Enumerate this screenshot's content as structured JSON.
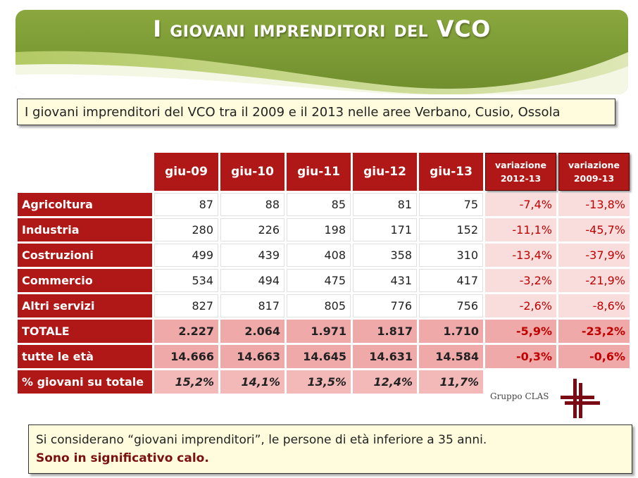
{
  "title": "I giovani imprenditori del VCO",
  "subtitle": "I giovani imprenditori del VCO tra il 2009 e il 2013 nelle aree Verbano, Cusio, Ossola",
  "colors": {
    "header_red": "#b01818",
    "variation_red": "#c00000",
    "variation_bg": "#f9dddd",
    "total_bg": "#f0a9a9",
    "banner_green": "#7f9d37",
    "note_bg": "#fefcdc"
  },
  "table": {
    "columns": [
      "giu-09",
      "giu-10",
      "giu-11",
      "giu-12",
      "giu-13"
    ],
    "variation_headers": [
      {
        "line1": "variazione",
        "line2": "2012-13"
      },
      {
        "line1": "variazione",
        "line2": "2009-13"
      }
    ],
    "rows": [
      {
        "label": "Agricoltura",
        "values": [
          "87",
          "88",
          "85",
          "81",
          "75"
        ],
        "var_2012_13": "-7,4%",
        "var_2009_13": "-13,8%"
      },
      {
        "label": "Industria",
        "values": [
          "280",
          "226",
          "198",
          "171",
          "152"
        ],
        "var_2012_13": "-11,1%",
        "var_2009_13": "-45,7%"
      },
      {
        "label": "Costruzioni",
        "values": [
          "499",
          "439",
          "408",
          "358",
          "310"
        ],
        "var_2012_13": "-13,4%",
        "var_2009_13": "-37,9%"
      },
      {
        "label": "Commercio",
        "values": [
          "534",
          "494",
          "475",
          "431",
          "417"
        ],
        "var_2012_13": "-3,2%",
        "var_2009_13": "-21,9%"
      },
      {
        "label": "Altri servizi",
        "values": [
          "827",
          "817",
          "805",
          "776",
          "756"
        ],
        "var_2012_13": "-2,6%",
        "var_2009_13": "-8,6%"
      },
      {
        "label": "TOTALE",
        "values": [
          "2.227",
          "2.064",
          "1.971",
          "1.817",
          "1.710"
        ],
        "var_2012_13": "-5,9%",
        "var_2009_13": "-23,2%"
      },
      {
        "label": "tutte le età",
        "values": [
          "14.666",
          "14.663",
          "14.645",
          "14.631",
          "14.584"
        ],
        "var_2012_13": "-0,3%",
        "var_2009_13": "-0,6%"
      },
      {
        "label": "% giovani su totale",
        "values": [
          "15,2%",
          "14,1%",
          "13,5%",
          "12,4%",
          "11,7%"
        ]
      }
    ]
  },
  "logo": {
    "text": "Gruppo CLAS",
    "icon": "clas-cross-logo"
  },
  "note": {
    "line1": "Si considerano “giovani imprenditori”, le persone di età inferiore a 35 anni.",
    "line2": "Sono in significativo calo."
  }
}
